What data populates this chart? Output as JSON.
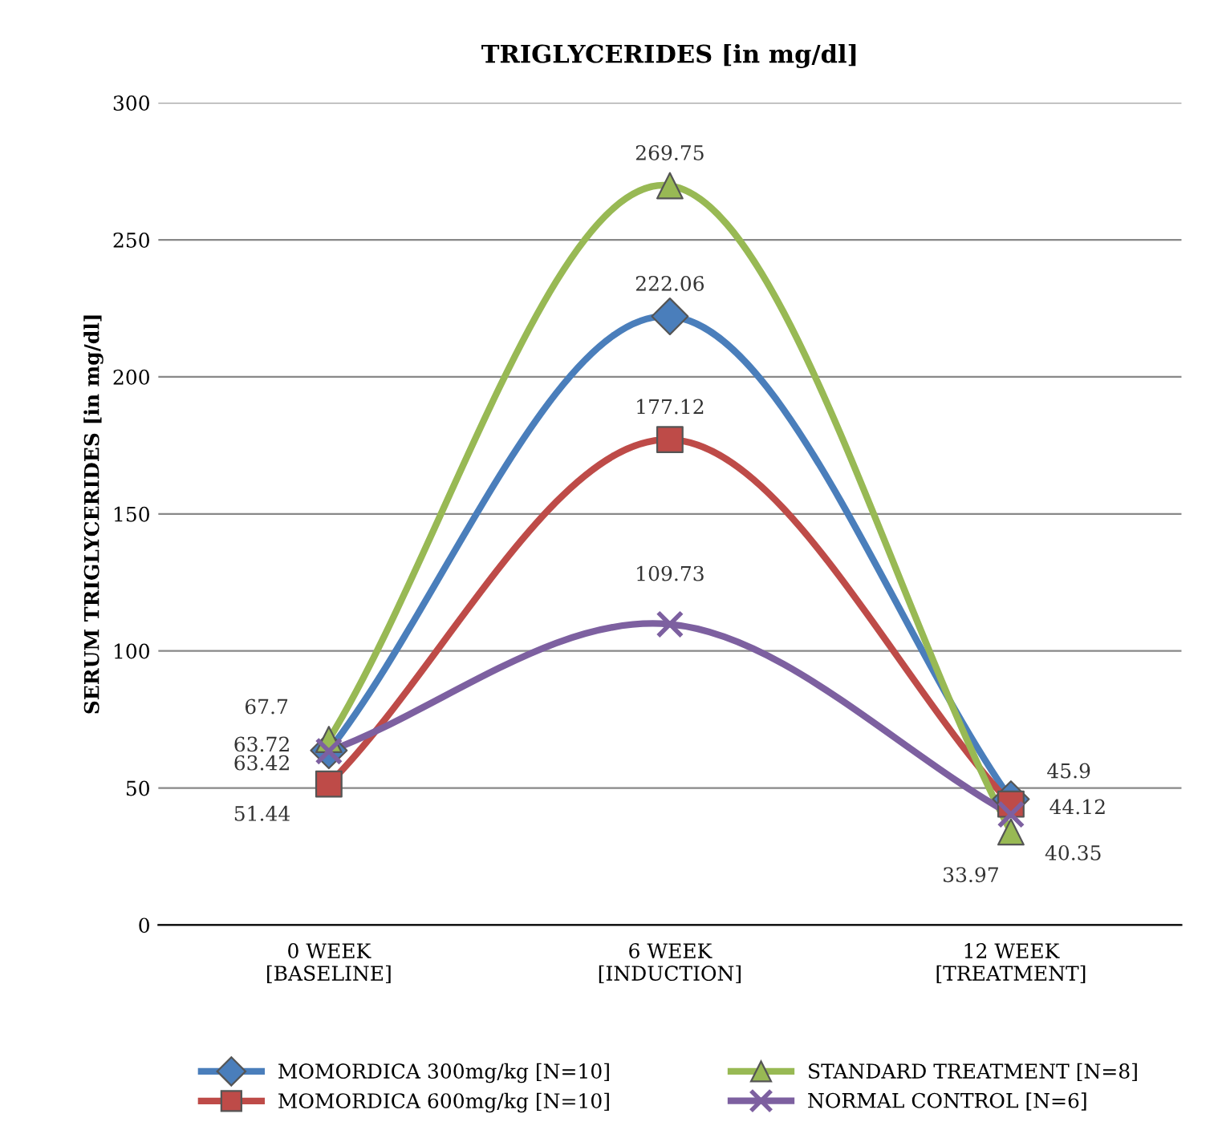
{
  "chart_data": {
    "type": "line",
    "title": "TRIGLYCERIDES [in mg/dl]",
    "ylabel": "SERUM TRIGLYCERIDES [in mg/dl]",
    "categories": [
      "0 WEEK\n[BASELINE]",
      "6 WEEK\n[INDUCTION]",
      "12 WEEK\n[TREATMENT]"
    ],
    "series": [
      {
        "name": "MOMORDICA 300mg/kg [N=10]",
        "color": "#4a7ebb",
        "marker": "diamond",
        "values": [
          63.72,
          222.06,
          45.9
        ]
      },
      {
        "name": "MOMORDICA 600mg/kg [N=10]",
        "color": "#be4b48",
        "marker": "square",
        "values": [
          51.44,
          177.12,
          44.12
        ]
      },
      {
        "name": "STANDARD TREATMENT [N=8]",
        "color": "#98b954",
        "marker": "triangle",
        "values": [
          67.7,
          269.75,
          33.97
        ]
      },
      {
        "name": "NORMAL CONTROL [N=6]",
        "color": "#7d60a0",
        "marker": "cross",
        "values": [
          63.42,
          109.73,
          40.35
        ]
      }
    ],
    "ylim": [
      0,
      300
    ],
    "yticks": [
      0,
      50,
      100,
      150,
      200,
      250,
      300
    ],
    "grid": "y",
    "legend": "bottom",
    "data_labels": true
  }
}
